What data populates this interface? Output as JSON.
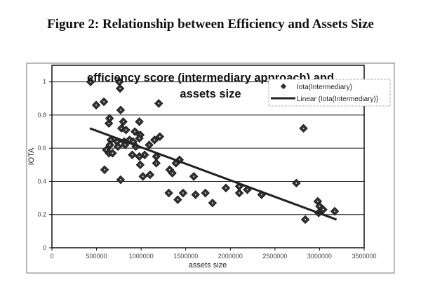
{
  "figure_title": "Figure 2: Relationship between Efficiency and Assets Size",
  "chart_data": {
    "type": "scatter",
    "title_lines": [
      "efficiency score (intermediary approach) and",
      "assets size"
    ],
    "xlabel": "assets size",
    "ylabel": "IOTA",
    "xlim": [
      0,
      3500000
    ],
    "ylim": [
      0,
      1.1
    ],
    "xticks": [
      "0",
      "500000",
      "1000000",
      "1500000",
      "2000000",
      "2500000",
      "3000000",
      "3500000"
    ],
    "xtick_values": [
      0,
      500000,
      1000000,
      1500000,
      2000000,
      2500000,
      3000000,
      3500000
    ],
    "yticks": [
      "0",
      "0.2",
      "0.4",
      "0.6",
      "0.8",
      "1"
    ],
    "ytick_values": [
      0,
      0.2,
      0.4,
      0.6,
      0.8,
      1
    ],
    "grid": "horizontal",
    "legend_position": "top-right",
    "legend": [
      "Iota(Intermediary)",
      "Linear (Iota(Intermediary))"
    ],
    "colors": {
      "marker": "#333333",
      "trend": "#222222"
    },
    "series": [
      {
        "name": "Iota(Intermediary)",
        "points": [
          [
            433000,
            1.0
          ],
          [
            756000,
            1.0
          ],
          [
            764000,
            0.96
          ],
          [
            496000,
            0.86
          ],
          [
            583000,
            0.88
          ],
          [
            1197000,
            0.87
          ],
          [
            770000,
            0.83
          ],
          [
            646000,
            0.78
          ],
          [
            638000,
            0.75
          ],
          [
            800000,
            0.76
          ],
          [
            980000,
            0.76
          ],
          [
            780000,
            0.72
          ],
          [
            830000,
            0.71
          ],
          [
            930000,
            0.7
          ],
          [
            990000,
            0.68
          ],
          [
            980000,
            0.66
          ],
          [
            1210000,
            0.67
          ],
          [
            1150000,
            0.65
          ],
          [
            1090000,
            0.62
          ],
          [
            660000,
            0.65
          ],
          [
            730000,
            0.64
          ],
          [
            810000,
            0.64
          ],
          [
            870000,
            0.65
          ],
          [
            910000,
            0.64
          ],
          [
            650000,
            0.62
          ],
          [
            740000,
            0.61
          ],
          [
            820000,
            0.62
          ],
          [
            940000,
            0.61
          ],
          [
            610000,
            0.59
          ],
          [
            640000,
            0.57
          ],
          [
            680000,
            0.57
          ],
          [
            900000,
            0.56
          ],
          [
            980000,
            0.55
          ],
          [
            1040000,
            0.56
          ],
          [
            1170000,
            0.55
          ],
          [
            990000,
            0.5
          ],
          [
            1170000,
            0.51
          ],
          [
            590000,
            0.47
          ],
          [
            1020000,
            0.43
          ],
          [
            1100000,
            0.44
          ],
          [
            770000,
            0.41
          ],
          [
            1320000,
            0.47
          ],
          [
            1350000,
            0.45
          ],
          [
            1390000,
            0.51
          ],
          [
            1430000,
            0.53
          ],
          [
            1590000,
            0.43
          ],
          [
            1310000,
            0.33
          ],
          [
            1470000,
            0.33
          ],
          [
            1410000,
            0.29
          ],
          [
            1610000,
            0.32
          ],
          [
            1720000,
            0.33
          ],
          [
            1800000,
            0.27
          ],
          [
            1950000,
            0.36
          ],
          [
            2820000,
            0.72
          ],
          [
            2740000,
            0.39
          ],
          [
            2100000,
            0.37
          ],
          [
            2100000,
            0.33
          ],
          [
            2190000,
            0.35
          ],
          [
            2350000,
            0.32
          ],
          [
            2840000,
            0.17
          ],
          [
            2980000,
            0.28
          ],
          [
            3000000,
            0.25
          ],
          [
            3040000,
            0.23
          ],
          [
            2990000,
            0.21
          ],
          [
            3170000,
            0.22
          ]
        ]
      },
      {
        "name": "Linear (Iota(Intermediary))",
        "type": "line",
        "points": [
          [
            425000,
            0.72
          ],
          [
            3190000,
            0.17
          ]
        ]
      }
    ]
  }
}
